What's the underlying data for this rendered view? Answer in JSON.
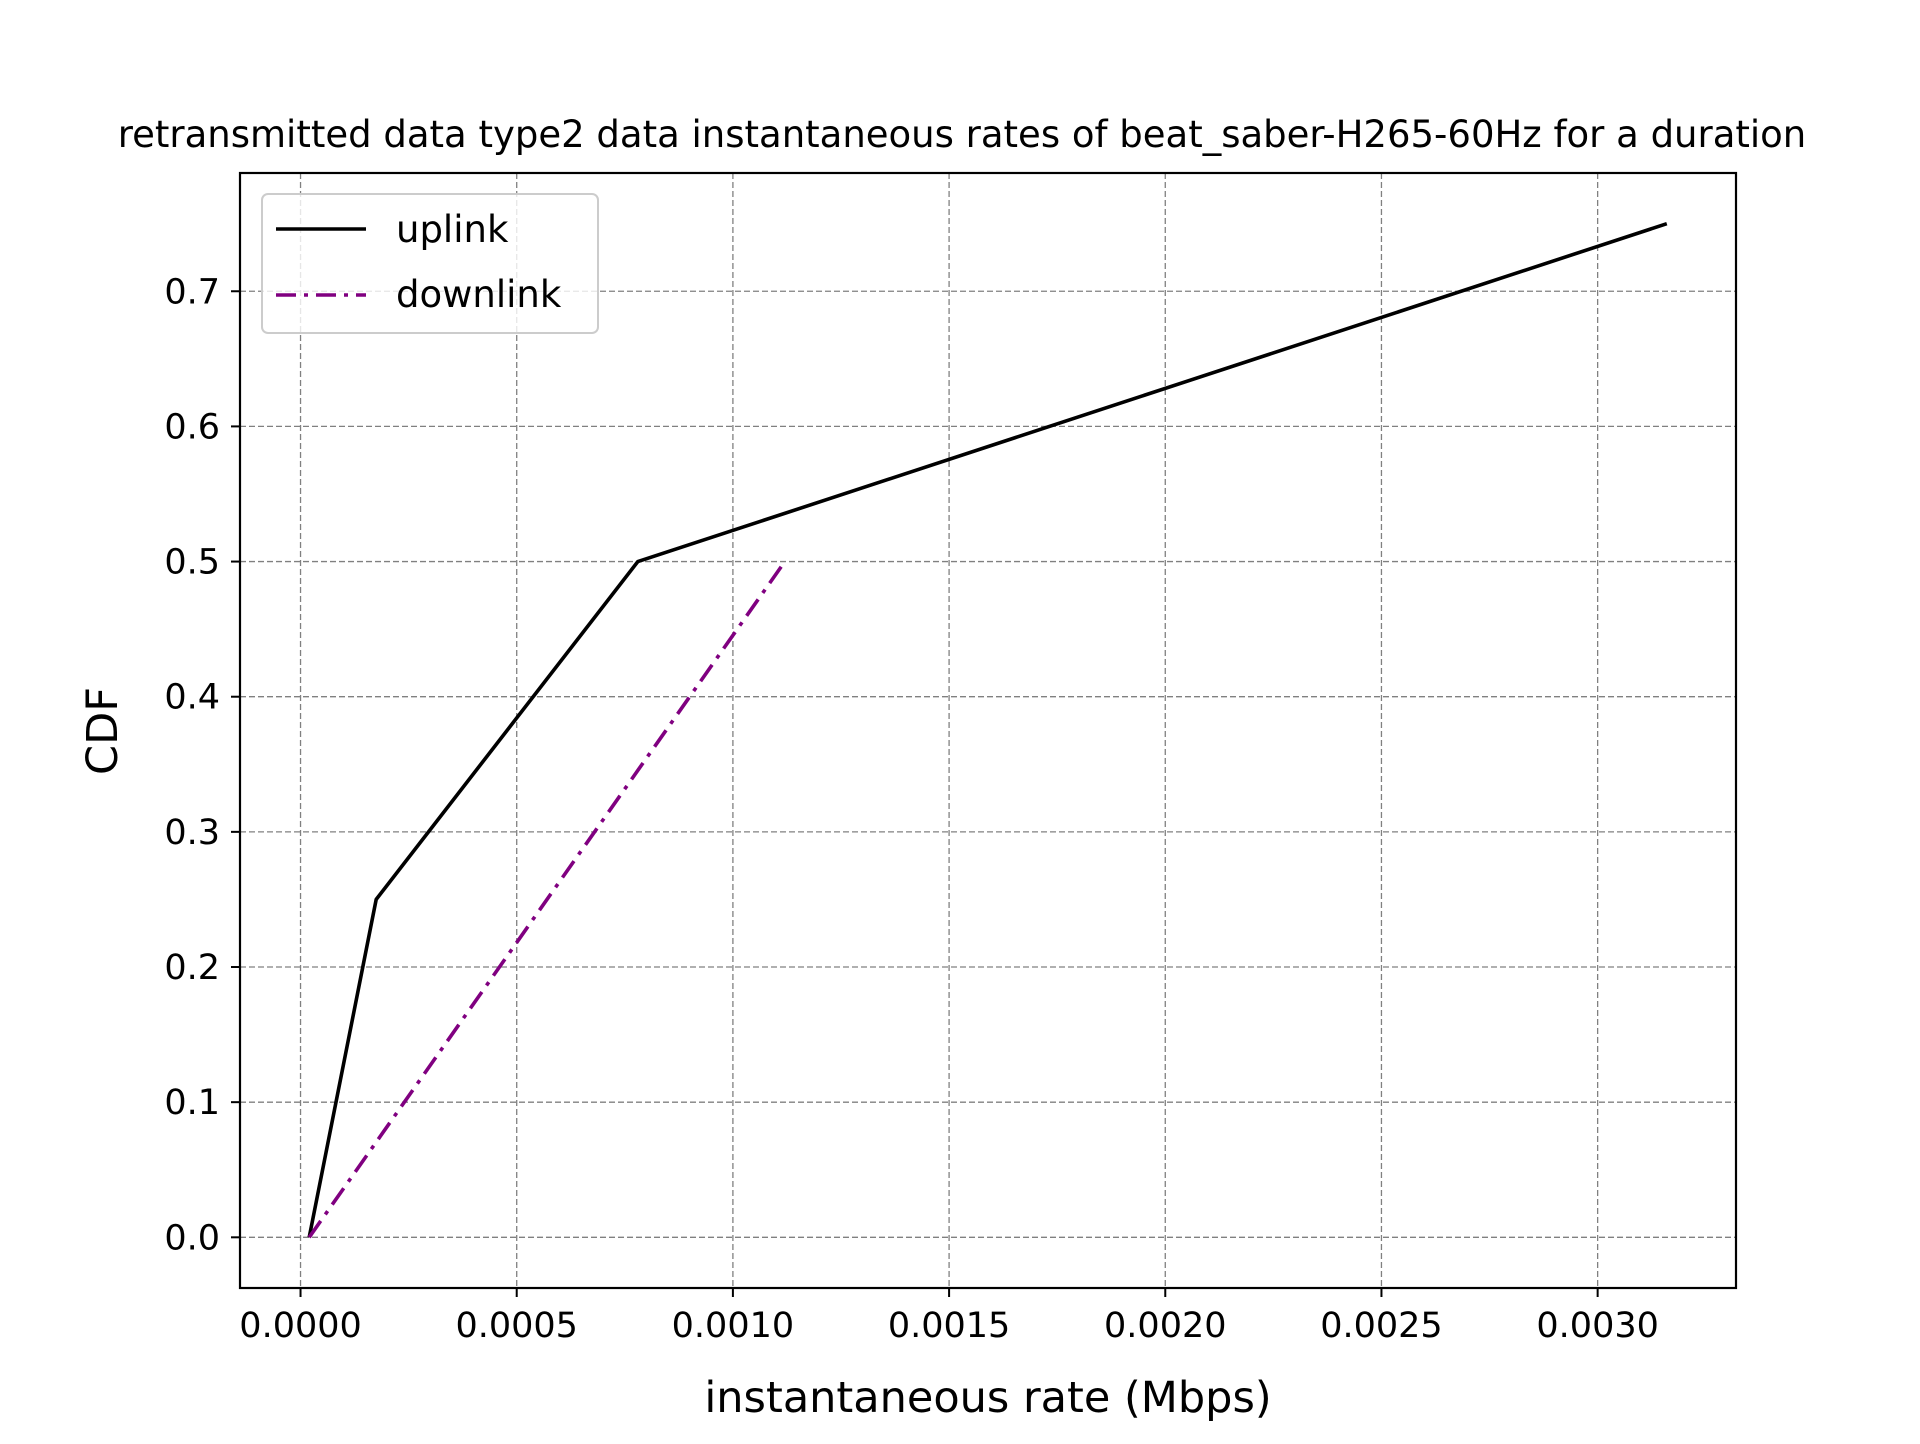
{
  "chart_data": {
    "type": "line",
    "title": "retransmitted data type2 data instantaneous rates of beat_saber-H265-60Hz for a duration",
    "xlabel": "instantaneous rate (Mbps)",
    "ylabel": "CDF",
    "xlim": [
      -0.00014,
      0.00332
    ],
    "ylim": [
      -0.0375,
      0.7875
    ],
    "x_ticks": [
      0.0,
      0.0005,
      0.001,
      0.0015,
      0.002,
      0.0025,
      0.003
    ],
    "x_tick_labels": [
      "0.0000",
      "0.0005",
      "0.0010",
      "0.0015",
      "0.0020",
      "0.0025",
      "0.0030"
    ],
    "y_ticks": [
      0.0,
      0.1,
      0.2,
      0.3,
      0.4,
      0.5,
      0.6,
      0.7
    ],
    "y_tick_labels": [
      "0.0",
      "0.1",
      "0.2",
      "0.3",
      "0.4",
      "0.5",
      "0.6",
      "0.7"
    ],
    "grid": true,
    "legend_position": "upper-left",
    "series": [
      {
        "name": "uplink",
        "color": "#000000",
        "style": "solid",
        "x": [
          2e-05,
          0.000175,
          0.00078,
          0.00316
        ],
        "y": [
          0.0,
          0.25,
          0.5,
          0.75
        ]
      },
      {
        "name": "downlink",
        "color": "#800080",
        "style": "dashdot",
        "x": [
          2e-05,
          0.00112
        ],
        "y": [
          0.0,
          0.5
        ]
      }
    ]
  }
}
